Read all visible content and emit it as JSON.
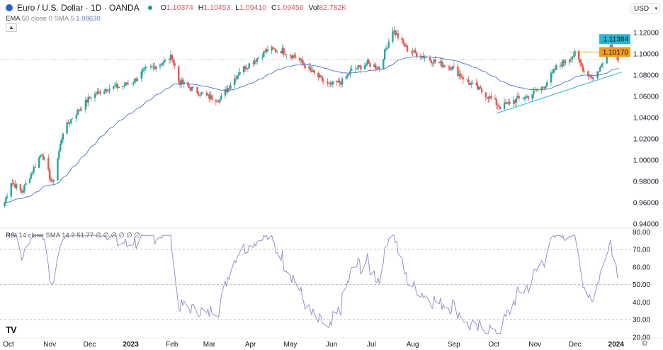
{
  "header": {
    "title": "Euro / U.S. Dollar · 1D · OANDA",
    "o_label": "O",
    "o": "1.10374",
    "h_label": "H",
    "h": "1.10453",
    "l_label": "L",
    "l": "1.09410",
    "c_label": "C",
    "c": "1.09456",
    "vol_label": "Vol",
    "vol": "82.782K"
  },
  "ema": {
    "label": "EMA",
    "params": "50 close 0 SMA 5",
    "value": "1.08630"
  },
  "currency": "USD",
  "rsi": {
    "label": "RSI",
    "params": "14 close SMA 14 2",
    "value": "51.77",
    "extras": "∅ ∅ ∅ ∅ ∅ ∅"
  },
  "colors": {
    "up": "#26a69a",
    "down": "#ef5350",
    "ema": "#4a74c9",
    "rsi": "#9a8fc9",
    "cyan": "#29b6d3",
    "orange": "#f59b1a"
  },
  "chart_data": {
    "type": "candlestick",
    "price_axis": {
      "ticks": [
        "1.12000",
        "1.10000",
        "1.08000",
        "1.06000",
        "1.04000",
        "1.02000",
        "1.00000",
        "0.98000",
        "0.96000",
        "0.94000"
      ],
      "range": [
        0.94,
        1.12
      ]
    },
    "rsi_axis": {
      "ticks": [
        "80.00",
        "70.00",
        "60.00",
        "50.00",
        "40.00",
        "30.00",
        "20.00"
      ],
      "range": [
        20,
        80
      ],
      "bands": [
        70,
        50,
        30
      ]
    },
    "x_ticks": [
      "Oct",
      "Nov",
      "Dec",
      "2023",
      "Feb",
      "Mar",
      "Apr",
      "May",
      "Jun",
      "Jul",
      "Aug",
      "Sep",
      "Oct",
      "Nov",
      "Dec",
      "2024"
    ],
    "x_tick_dates": [
      "2022-10-01",
      "2022-11-01",
      "2022-12-01",
      "2023-01-01",
      "2023-02-01",
      "2023-03-01",
      "2023-04-01",
      "2023-05-01",
      "2023-06-01",
      "2023-07-01",
      "2023-08-01",
      "2023-09-01",
      "2023-10-01",
      "2023-11-01",
      "2023-12-01",
      "2024-01-01"
    ],
    "close_path": [
      [
        "2022-09-28",
        0.96
      ],
      [
        "2022-10-03",
        0.98
      ],
      [
        "2022-10-11",
        0.97
      ],
      [
        "2022-10-19",
        0.99
      ],
      [
        "2022-10-26",
        1.007
      ],
      [
        "2022-11-03",
        0.977
      ],
      [
        "2022-11-11",
        1.027
      ],
      [
        "2022-11-18",
        1.04
      ],
      [
        "2022-12-02",
        1.06
      ],
      [
        "2022-12-13",
        1.067
      ],
      [
        "2022-12-26",
        1.07
      ],
      [
        "2023-01-03",
        1.074
      ],
      [
        "2023-01-11",
        1.084
      ],
      [
        "2023-01-25",
        1.092
      ],
      [
        "2023-02-01",
        1.097
      ],
      [
        "2023-02-06",
        1.074
      ],
      [
        "2023-02-16",
        1.067
      ],
      [
        "2023-02-27",
        1.06
      ],
      [
        "2023-03-09",
        1.057
      ],
      [
        "2023-03-16",
        1.07
      ],
      [
        "2023-03-24",
        1.084
      ],
      [
        "2023-04-04",
        1.094
      ],
      [
        "2023-04-14",
        1.104
      ],
      [
        "2023-04-25",
        1.103
      ],
      [
        "2023-05-05",
        1.097
      ],
      [
        "2023-05-16",
        1.084
      ],
      [
        "2023-05-30",
        1.07
      ],
      [
        "2023-06-09",
        1.074
      ],
      [
        "2023-06-16",
        1.084
      ],
      [
        "2023-06-28",
        1.091
      ],
      [
        "2023-07-07",
        1.087
      ],
      [
        "2023-07-17",
        1.123
      ],
      [
        "2023-07-28",
        1.104
      ],
      [
        "2023-08-10",
        1.097
      ],
      [
        "2023-08-21",
        1.091
      ],
      [
        "2023-08-31",
        1.087
      ],
      [
        "2023-09-11",
        1.074
      ],
      [
        "2023-09-27",
        1.06
      ],
      [
        "2023-10-06",
        1.05
      ],
      [
        "2023-10-18",
        1.057
      ],
      [
        "2023-10-27",
        1.06
      ],
      [
        "2023-11-08",
        1.07
      ],
      [
        "2023-11-17",
        1.087
      ],
      [
        "2023-12-01",
        1.1
      ],
      [
        "2023-12-08",
        1.084
      ],
      [
        "2023-12-15",
        1.077
      ],
      [
        "2023-12-22",
        1.091
      ],
      [
        "2023-12-28",
        1.109
      ],
      [
        "2024-01-03",
        1.0946
      ]
    ],
    "last_price": 1.09456,
    "price_labels": [
      {
        "text": "1.11384",
        "value": 1.11384,
        "color": "cyan",
        "line_from": "2023-12-26"
      },
      {
        "text": "1.10170",
        "value": 1.1017,
        "color": "orange",
        "line_from": "2023-11-27"
      }
    ],
    "trendline": {
      "from": [
        "2023-10-03",
        1.044
      ],
      "to": [
        "2024-01-05",
        1.0828
      ]
    }
  }
}
